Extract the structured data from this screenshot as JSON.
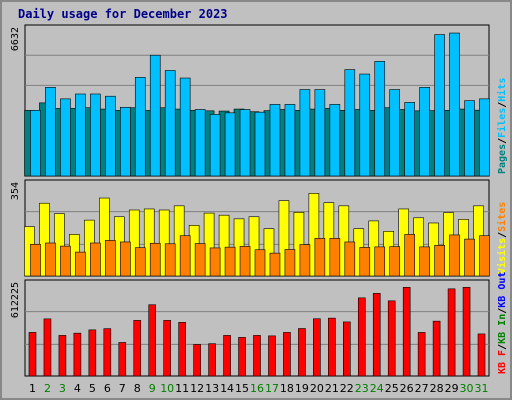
{
  "title": "Daily usage for December 2023",
  "chart_data": [
    {
      "type": "bar",
      "panel": "top",
      "ymax_label": "6632",
      "ylim": [
        0,
        6632
      ],
      "categories": [
        "1",
        "2",
        "3",
        "4",
        "5",
        "6",
        "7",
        "8",
        "9",
        "10",
        "11",
        "12",
        "13",
        "14",
        "15",
        "16",
        "17",
        "18",
        "19",
        "20",
        "21",
        "22",
        "23",
        "24",
        "25",
        "26",
        "27",
        "28",
        "29",
        "30",
        "31"
      ],
      "weekend_days": [
        "2",
        "3",
        "9",
        "10",
        "16",
        "17",
        "23",
        "24",
        "30",
        "31"
      ],
      "legend": [
        "Pages",
        "/",
        "Files",
        "/",
        "Hits"
      ],
      "series": [
        {
          "name": "Pages",
          "color": "#008080",
          "values": [
            2960,
            3300,
            3050,
            3050,
            3080,
            3020,
            2960,
            3080,
            2960,
            3080,
            3020,
            2960,
            2940,
            2930,
            3020,
            2900,
            2950,
            3000,
            2960,
            3020,
            3050,
            2960,
            3000,
            2960,
            3080,
            3000,
            2940,
            2950,
            2960,
            3020,
            2970
          ]
        },
        {
          "name": "Hits",
          "color": "#00c0ff",
          "values": [
            2960,
            4000,
            3480,
            3700,
            3700,
            3600,
            3100,
            4450,
            5450,
            4760,
            4420,
            3000,
            2780,
            2850,
            3000,
            2880,
            3230,
            3230,
            3900,
            3900,
            3230,
            4800,
            4600,
            5170,
            3900,
            3320,
            4000,
            6380,
            6450,
            3400,
            3480
          ]
        }
      ]
    },
    {
      "type": "bar",
      "panel": "middle",
      "ymax_label": "354",
      "ylim": [
        0,
        354
      ],
      "legend": [
        "Visits",
        "/",
        "Sites"
      ],
      "series": [
        {
          "name": "Visits",
          "color": "#ffff00",
          "values": [
            190,
            280,
            240,
            160,
            215,
            300,
            228,
            254,
            258,
            254,
            270,
            195,
            242,
            234,
            220,
            228,
            182,
            290,
            245,
            318,
            282,
            270,
            182,
            212,
            172,
            258,
            224,
            204,
            244,
            218,
            270
          ]
        },
        {
          "name": "Sites",
          "color": "#ff8000",
          "values": [
            122,
            127,
            115,
            92,
            127,
            137,
            131,
            109,
            126,
            124,
            155,
            125,
            108,
            111,
            114,
            101,
            88,
            102,
            121,
            145,
            145,
            131,
            110,
            112,
            113,
            160,
            112,
            118,
            158,
            142,
            155
          ]
        }
      ]
    },
    {
      "type": "bar",
      "panel": "bottom",
      "ymax_label": "612225",
      "ylim": [
        0,
        612225
      ],
      "legend": [
        "KB F",
        "/",
        "KB In",
        "/",
        "KB Out"
      ],
      "series": [
        {
          "name": "KB F",
          "color": "#ff0000",
          "values": [
            290000,
            380000,
            270000,
            285000,
            307000,
            315000,
            223000,
            370000,
            474000,
            370000,
            357000,
            210000,
            215000,
            270000,
            257000,
            270000,
            267000,
            290000,
            316000,
            381000,
            385000,
            360000,
            520000,
            550000,
            500000,
            590000,
            290000,
            365000,
            580000,
            590000,
            280000
          ]
        }
      ]
    }
  ]
}
